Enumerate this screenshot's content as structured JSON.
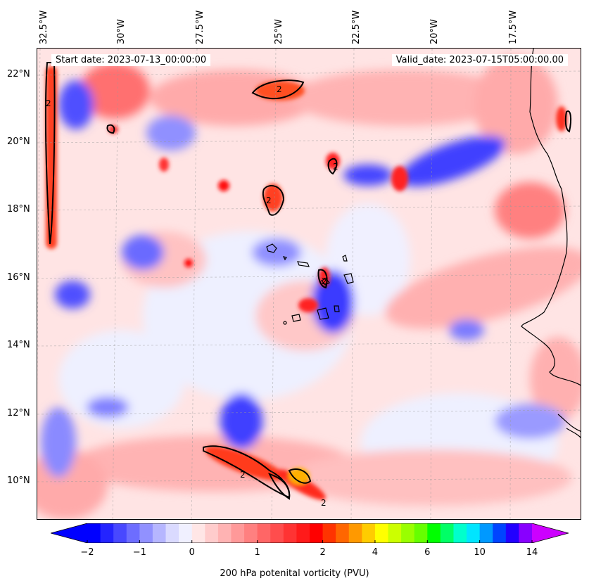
{
  "map": {
    "start_date": "Start date: 2023-07-13_00:00:00",
    "valid_date": "Valid_date: 2023-07-15T05:00:00.00",
    "lon_labels": [
      "32.5°W",
      "30°W",
      "27.5°W",
      "25°W",
      "22.5°W",
      "20°W",
      "17.5°W"
    ],
    "lat_labels": [
      "22°N",
      "20°N",
      "18°N",
      "16°N",
      "14°N",
      "12°N",
      "10°N"
    ],
    "contour_value_label": "2"
  },
  "colorbar": {
    "label": "200 hPa potenital vorticity (PVU)",
    "tick_labels": [
      "−2",
      "−1",
      "0",
      "1",
      "2",
      "4",
      "6",
      "10",
      "14"
    ],
    "colors": [
      "#0000ff",
      "#2424ff",
      "#4848ff",
      "#6d6dff",
      "#9191ff",
      "#b6b6ff",
      "#dadaff",
      "#f0f0ff",
      "#ffe6e6",
      "#ffcccc",
      "#ffb3b3",
      "#ff9999",
      "#ff8080",
      "#ff6666",
      "#ff4d4d",
      "#ff3333",
      "#ff1a1a",
      "#ff0000",
      "#ff3300",
      "#ff6600",
      "#ff9900",
      "#ffcc00",
      "#ffff00",
      "#ccff00",
      "#99ff00",
      "#66ff00",
      "#00ff00",
      "#00ff66",
      "#00ffcc",
      "#00e5ff",
      "#0099ff",
      "#0044ff",
      "#2200ff",
      "#8800ff"
    ],
    "under_color": "#0000ff",
    "over_color": "#cc00ff"
  }
}
